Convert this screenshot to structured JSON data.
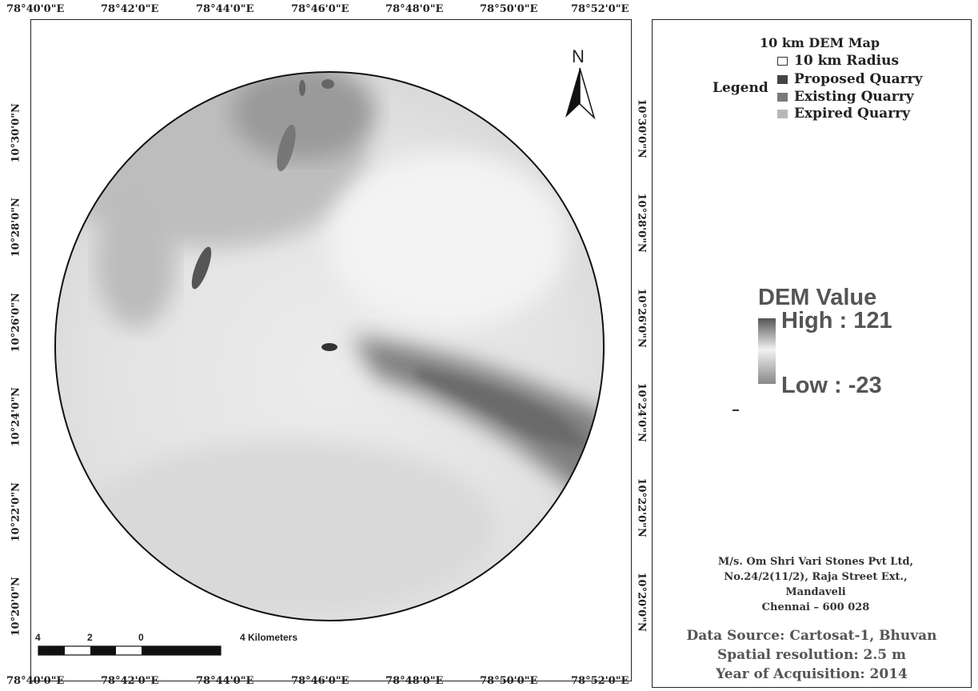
{
  "map": {
    "top_ticks": [
      "78°40'0\"E",
      "78°42'0\"E",
      "78°44'0\"E",
      "78°46'0\"E",
      "78°48'0\"E",
      "78°50'0\"E",
      "78°52'0\"E"
    ],
    "bottom_ticks": [
      "78°40'0\"E",
      "78°42'0\"E",
      "78°44'0\"E",
      "78°46'0\"E",
      "78°48'0\"E",
      "78°50'0\"E",
      "78°52'0\"E"
    ],
    "left_ticks": [
      "10°30'0\"N",
      "10°28'0\"N",
      "10°26'0\"N",
      "10°24'0\"N",
      "10°22'0\"N",
      "10°20'0\"N"
    ],
    "right_ticks": [
      "10°30'0\"N",
      "10°28'0\"N",
      "10°26'0\"N",
      "10°24'0\"N",
      "10°22'0\"N",
      "10°20'0\"N"
    ],
    "north_label": "N",
    "scale": {
      "labels": [
        "4",
        "2",
        "0",
        "4 Kilometers"
      ]
    }
  },
  "legend": {
    "title": "10 km DEM Map",
    "label": "Legend",
    "items": [
      {
        "label": "10 km Radius",
        "color": "#ffffff",
        "border": "#333333"
      },
      {
        "label": "Proposed Quarry",
        "color": "#444444",
        "border": "#444444"
      },
      {
        "label": "Existing Quarry",
        "color": "#7a7a7a",
        "border": "#7a7a7a"
      },
      {
        "label": "Expired Quarry",
        "color": "#b8b8b8",
        "border": "#b8b8b8"
      }
    ]
  },
  "dem": {
    "title": "DEM Value",
    "high": "High : 121",
    "low": "Low : -23"
  },
  "address": {
    "line1": "M/s. Om Shri Vari Stones Pvt Ltd,",
    "line2": "No.24/2(11/2), Raja Street Ext.,",
    "line3": "Mandaveli",
    "line4": "Chennai – 600 028"
  },
  "source": {
    "line1": "Data Source: Cartosat-1, Bhuvan",
    "line2": "Spatial resolution: 2.5 m",
    "line3": "Year of Acquisition: 2014"
  }
}
